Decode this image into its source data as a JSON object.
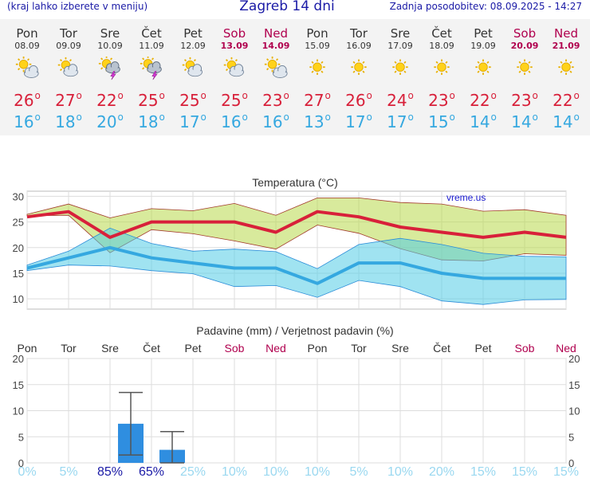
{
  "header": {
    "menu_hint": "(kraj lahko izberete v meniju)",
    "title": "Zagreb 14 dni",
    "updated": "Zadnja posodobitev: 08.09.2025 - 14:27"
  },
  "icons": {
    "partly_cloudy": "partly-cloudy-icon",
    "cloudy": "cloudy-icon",
    "thunder": "thunderstorm-icon",
    "sunny": "sun-icon"
  },
  "colors": {
    "max_temp": "#d8203a",
    "min_temp": "#35a8e0",
    "weekend": "#b0004e",
    "precip_bar": "#2f8ee0"
  },
  "forecast": [
    {
      "day": "Pon",
      "date": "08.09",
      "icon": "partly_cloudy",
      "max": "26",
      "min": "16",
      "weekend": false
    },
    {
      "day": "Tor",
      "date": "09.09",
      "icon": "cloudy",
      "max": "27",
      "min": "18",
      "weekend": false
    },
    {
      "day": "Sre",
      "date": "10.09",
      "icon": "thunder",
      "max": "22",
      "min": "20",
      "weekend": false
    },
    {
      "day": "Čet",
      "date": "11.09",
      "icon": "thunder",
      "max": "25",
      "min": "18",
      "weekend": false
    },
    {
      "day": "Pet",
      "date": "12.09",
      "icon": "cloudy",
      "max": "25",
      "min": "17",
      "weekend": false
    },
    {
      "day": "Sob",
      "date": "13.09",
      "icon": "cloudy",
      "max": "25",
      "min": "16",
      "weekend": true
    },
    {
      "day": "Ned",
      "date": "14.09",
      "icon": "partly_cloudy",
      "max": "23",
      "min": "16",
      "weekend": true
    },
    {
      "day": "Pon",
      "date": "15.09",
      "icon": "sunny",
      "max": "27",
      "min": "13",
      "weekend": false
    },
    {
      "day": "Tor",
      "date": "16.09",
      "icon": "sunny",
      "max": "26",
      "min": "17",
      "weekend": false
    },
    {
      "day": "Sre",
      "date": "17.09",
      "icon": "sunny",
      "max": "24",
      "min": "17",
      "weekend": false
    },
    {
      "day": "Čet",
      "date": "18.09",
      "icon": "sunny",
      "max": "23",
      "min": "15",
      "weekend": false
    },
    {
      "day": "Pet",
      "date": "19.09",
      "icon": "sunny",
      "max": "22",
      "min": "14",
      "weekend": false
    },
    {
      "day": "Sob",
      "date": "20.09",
      "icon": "sunny",
      "max": "23",
      "min": "14",
      "weekend": true
    },
    {
      "day": "Ned",
      "date": "21.09",
      "icon": "sunny",
      "max": "22",
      "min": "14",
      "weekend": true
    }
  ],
  "chart_data": [
    {
      "type": "line",
      "title": "Temperatura (°C)",
      "watermark": "vreme.us",
      "ylim": [
        8,
        31
      ],
      "yticks": [
        10,
        15,
        20,
        25,
        30
      ],
      "grid": true,
      "x": [
        0,
        1,
        2,
        3,
        4,
        5,
        6,
        7,
        8,
        9,
        10,
        11,
        12,
        13
      ],
      "series": [
        {
          "values": [
            26,
            27,
            22,
            25,
            25,
            25,
            23,
            27,
            26,
            24,
            23,
            22,
            23,
            22
          ],
          "color": "#d8203a"
        },
        {
          "values": [
            16,
            18,
            20,
            18,
            17,
            16,
            16,
            13,
            17,
            17,
            15,
            14,
            14,
            14
          ],
          "color": "#35a8e0"
        }
      ],
      "max_band": {
        "upper": [
          26.5,
          28.5,
          25.8,
          27.6,
          27.2,
          28.6,
          26.3,
          29.7,
          29.7,
          28.8,
          28.5,
          27.1,
          27.4,
          26.3
        ],
        "lower": [
          26.2,
          26.3,
          19.0,
          23.5,
          22.7,
          21.3,
          19.7,
          24.4,
          22.8,
          19.8,
          17.6,
          17.4,
          18.8,
          18.5
        ]
      },
      "min_band": {
        "upper": [
          16.6,
          19.3,
          23.8,
          20.8,
          19.3,
          19.7,
          19.2,
          15.9,
          20.6,
          21.8,
          20.6,
          18.9,
          18.3,
          18.2
        ],
        "lower": [
          15.5,
          16.6,
          16.4,
          15.5,
          14.9,
          12.4,
          12.6,
          10.3,
          13.6,
          12.4,
          9.6,
          8.9,
          9.8,
          9.9
        ]
      }
    },
    {
      "type": "bar",
      "title": "Padavine (mm) / Verjetnost padavin (%)",
      "categories": [
        "Pon",
        "Tor",
        "Sre",
        "Čet",
        "Pet",
        "Sob",
        "Ned",
        "Pon",
        "Tor",
        "Sre",
        "Čet",
        "Pet",
        "Sob",
        "Ned"
      ],
      "weekend": [
        false,
        false,
        false,
        false,
        false,
        true,
        true,
        false,
        false,
        false,
        false,
        false,
        true,
        true
      ],
      "ylim": [
        0,
        20
      ],
      "yticks": [
        0,
        5,
        10,
        15,
        20
      ],
      "values": [
        0,
        0,
        7.5,
        2.5,
        0,
        0,
        0,
        0,
        0,
        0,
        0,
        0,
        0,
        0
      ],
      "ranges": [
        null,
        null,
        [
          1.5,
          13.5
        ],
        [
          0,
          6
        ],
        null,
        null,
        null,
        null,
        null,
        null,
        null,
        null,
        null,
        null
      ],
      "probability": [
        "0%",
        "5%",
        "85%",
        "65%",
        "25%",
        "10%",
        "10%",
        "10%",
        "5%",
        "10%",
        "20%",
        "15%",
        "15%",
        "15%"
      ]
    }
  ]
}
